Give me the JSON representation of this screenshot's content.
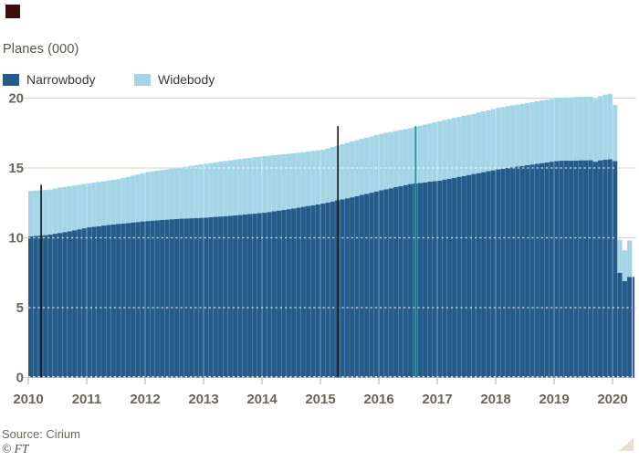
{
  "header": {
    "title": "Planes (000)"
  },
  "legend": {
    "items": [
      {
        "label": "Narrowbody",
        "color": "#255b8b"
      },
      {
        "label": "Widebody",
        "color": "#a3d5e6"
      }
    ]
  },
  "footer": {
    "source": "Source: Cirium",
    "ft_mark": "© FT"
  },
  "chart_data": {
    "type": "area",
    "stacked": true,
    "title": "Planes (000)",
    "interval": "monthly",
    "x_start": "2010-01",
    "x_end": "2020-04",
    "x_tick_years": [
      2010,
      2011,
      2012,
      2013,
      2014,
      2015,
      2016,
      2017,
      2018,
      2019,
      2020
    ],
    "ylim": [
      0,
      20
    ],
    "y_ticks": [
      0,
      5,
      10,
      15,
      20
    ],
    "grid": "horizontal dotted, faint vertical year lines over fill",
    "legend_position": "top-left",
    "series": [
      {
        "name": "Narrowbody",
        "color": "#255b8b",
        "values": [
          10.1,
          10.13,
          10.16,
          10.19,
          10.23,
          10.29,
          10.35,
          10.41,
          10.47,
          10.54,
          10.61,
          10.68,
          10.75,
          10.79,
          10.83,
          10.88,
          10.92,
          10.96,
          11.0,
          11.03,
          11.06,
          11.1,
          11.13,
          11.17,
          11.2,
          11.23,
          11.25,
          11.28,
          11.3,
          11.33,
          11.35,
          11.37,
          11.38,
          11.4,
          11.42,
          11.43,
          11.45,
          11.48,
          11.5,
          11.53,
          11.55,
          11.58,
          11.6,
          11.63,
          11.67,
          11.7,
          11.73,
          11.77,
          11.8,
          11.85,
          11.9,
          11.95,
          12.0,
          12.05,
          12.1,
          12.16,
          12.22,
          12.28,
          12.33,
          12.39,
          12.45,
          12.53,
          12.6,
          12.68,
          12.75,
          12.83,
          12.9,
          12.98,
          13.07,
          13.15,
          13.23,
          13.32,
          13.4,
          13.48,
          13.55,
          13.63,
          13.7,
          13.78,
          13.85,
          13.89,
          13.93,
          13.97,
          14.02,
          14.06,
          14.1,
          14.17,
          14.23,
          14.3,
          14.37,
          14.43,
          14.5,
          14.57,
          14.63,
          14.7,
          14.77,
          14.83,
          14.9,
          14.95,
          15.0,
          15.05,
          15.1,
          15.15,
          15.2,
          15.25,
          15.3,
          15.35,
          15.4,
          15.45,
          15.5,
          15.52,
          15.53,
          15.52,
          15.54,
          15.55,
          15.55,
          15.56,
          15.45,
          15.55,
          15.6,
          15.62,
          15.5,
          7.5,
          6.9,
          7.2
        ]
      },
      {
        "name": "Widebody",
        "color": "#a3d5e6",
        "values": [
          3.25,
          3.25,
          3.24,
          3.23,
          3.22,
          3.23,
          3.25,
          3.23,
          3.22,
          3.2,
          3.19,
          3.17,
          3.15,
          3.16,
          3.17,
          3.17,
          3.18,
          3.19,
          3.2,
          3.25,
          3.3,
          3.35,
          3.4,
          3.45,
          3.5,
          3.52,
          3.55,
          3.57,
          3.6,
          3.62,
          3.65,
          3.68,
          3.72,
          3.75,
          3.78,
          3.82,
          3.85,
          3.87,
          3.9,
          3.92,
          3.95,
          3.97,
          4.0,
          4.01,
          4.01,
          4.02,
          4.04,
          4.04,
          4.05,
          4.03,
          4.02,
          4.0,
          3.98,
          3.97,
          3.95,
          3.93,
          3.91,
          3.89,
          3.89,
          3.87,
          3.85,
          3.87,
          3.9,
          3.92,
          3.95,
          3.97,
          4.0,
          4.01,
          4.01,
          4.02,
          4.03,
          4.04,
          4.05,
          4.04,
          4.03,
          4.02,
          4.02,
          4.0,
          4.0,
          4.04,
          4.09,
          4.13,
          4.16,
          4.21,
          4.25,
          4.26,
          4.27,
          4.28,
          4.28,
          4.3,
          4.3,
          4.31,
          4.34,
          4.35,
          4.36,
          4.39,
          4.4,
          4.41,
          4.42,
          4.43,
          4.43,
          4.44,
          4.45,
          4.46,
          4.47,
          4.48,
          4.48,
          4.49,
          4.5,
          4.51,
          4.52,
          4.54,
          4.54,
          4.54,
          4.55,
          4.54,
          4.5,
          4.6,
          4.65,
          4.68,
          4.0,
          2.35,
          2.2,
          2.6
        ]
      }
    ],
    "annotation_lines": [
      {
        "x_year": 2010.22,
        "y_from": 0,
        "y_to": 13.8,
        "color": "#141414",
        "width": 1.6
      },
      {
        "x_year": 2015.3,
        "y_from": 0,
        "y_to": 18.0,
        "color": "#141414",
        "width": 1.6
      },
      {
        "x_year": 2016.63,
        "y_from": 0,
        "y_to": 18.0,
        "color": "#0ea49a",
        "width": 1.8
      },
      {
        "x_year": 2020.36,
        "y_from": 0,
        "y_to": 7.2,
        "color": "#1e3ee8",
        "width": 1.8
      }
    ]
  }
}
